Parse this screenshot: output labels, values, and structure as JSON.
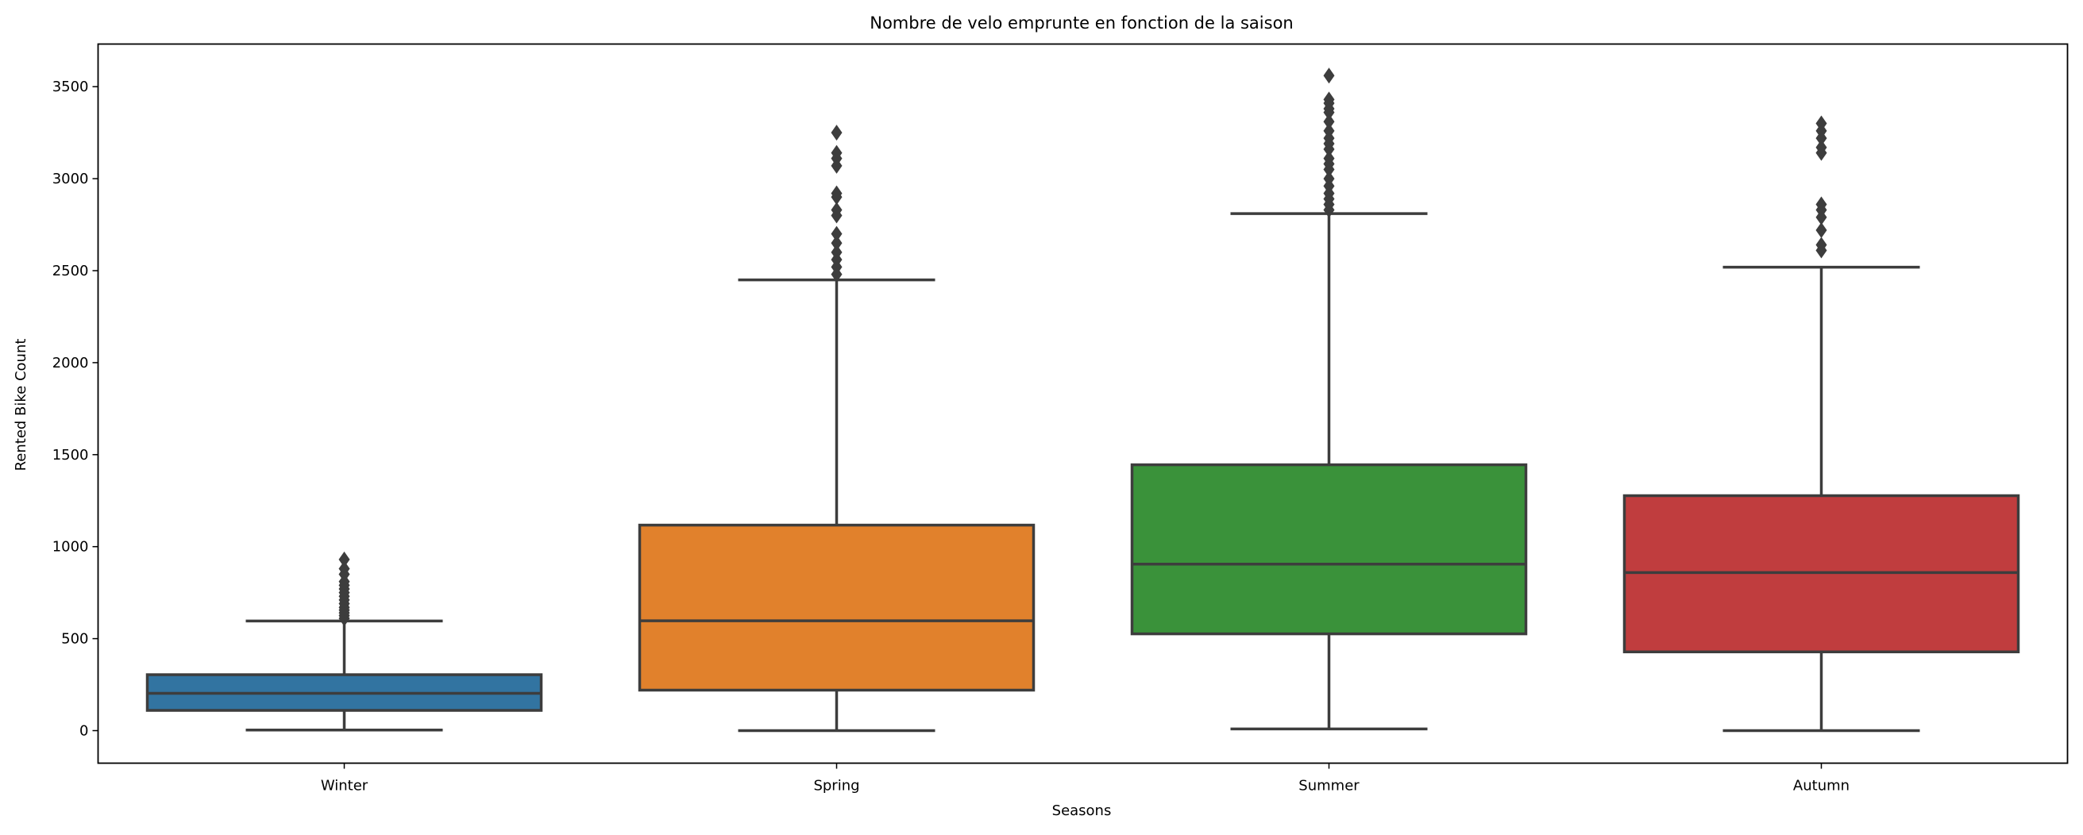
{
  "chart_data": {
    "type": "boxplot",
    "title": "Nombre de velo emprunte en fonction de la saison",
    "xlabel": "Seasons",
    "ylabel": "Rented Bike Count",
    "ylim": [
      -170,
      3740
    ],
    "yticks": [
      0,
      500,
      1000,
      1500,
      2000,
      2500,
      3000,
      3500
    ],
    "grid": false,
    "categories": [
      "Winter",
      "Spring",
      "Summer",
      "Autumn"
    ],
    "boxes": [
      {
        "name": "Winter",
        "color": "#3274a1",
        "whisker_low": 3,
        "q1": 110,
        "median": 203,
        "q3": 304,
        "whisker_high": 596,
        "outliers": [
          610,
          625,
          640,
          655,
          670,
          690,
          710,
          730,
          750,
          770,
          790,
          810,
          850,
          880,
          930
        ]
      },
      {
        "name": "Spring",
        "color": "#e1812c",
        "whisker_low": 0,
        "q1": 220,
        "median": 597,
        "q3": 1117,
        "whisker_high": 2450,
        "outliers": [
          2480,
          2520,
          2560,
          2600,
          2650,
          2700,
          2800,
          2830,
          2900,
          2920,
          3070,
          3110,
          3140,
          3250
        ]
      },
      {
        "name": "Summer",
        "color": "#3a923a",
        "whisker_low": 9,
        "q1": 526,
        "median": 905,
        "q3": 1445,
        "whisker_high": 2810,
        "outliers": [
          2830,
          2860,
          2890,
          2920,
          2960,
          3000,
          3050,
          3080,
          3110,
          3160,
          3190,
          3220,
          3260,
          3310,
          3360,
          3380,
          3410,
          3430,
          3560
        ]
      },
      {
        "name": "Autumn",
        "color": "#c03d3e",
        "whisker_low": 0,
        "q1": 428,
        "median": 859,
        "q3": 1277,
        "whisker_high": 2519,
        "outliers": [
          2610,
          2640,
          2720,
          2790,
          2830,
          2860,
          3140,
          3170,
          3220,
          3260,
          3300
        ]
      }
    ]
  }
}
